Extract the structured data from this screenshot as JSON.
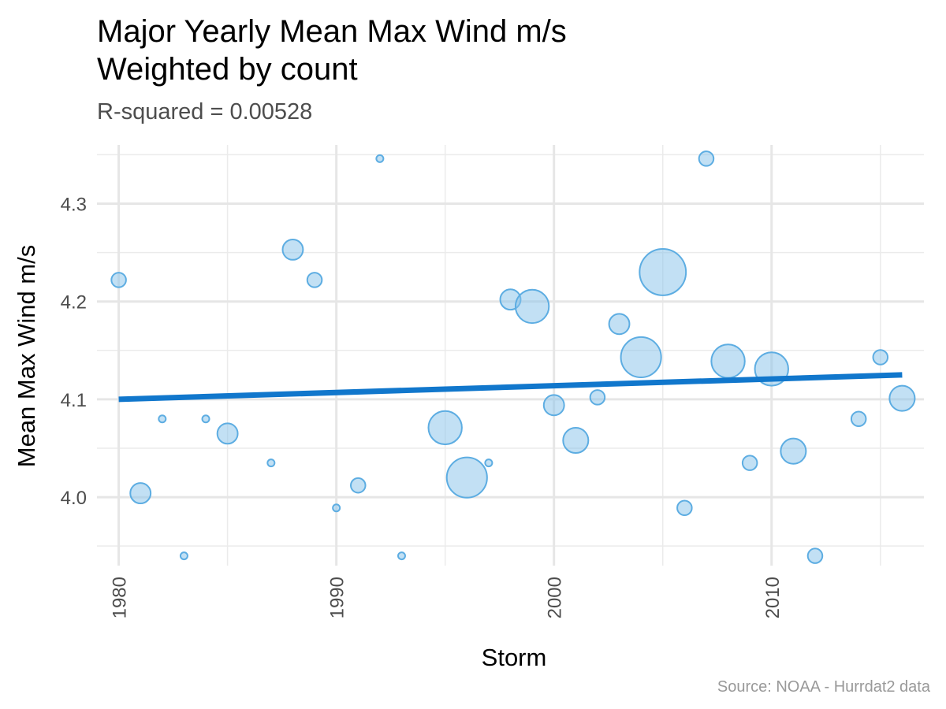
{
  "chart_data": {
    "type": "scatter",
    "title_line1": "Major Yearly Mean Max Wind m/s",
    "title_line2": "Weighted by count",
    "subtitle": "R-squared =  0.00528",
    "caption": "Source: NOAA - Hurrdat2 data",
    "xlabel": "Storm",
    "ylabel": "Mean Max Wind m/s",
    "xlim": [
      1979,
      2017
    ],
    "ylim": [
      3.93,
      4.36
    ],
    "x_ticks": [
      1980,
      1990,
      2000,
      2010
    ],
    "x_tick_labels": [
      "1980",
      "1990",
      "2000",
      "2010"
    ],
    "y_ticks": [
      4.0,
      4.1,
      4.2,
      4.3
    ],
    "y_tick_labels": [
      "4.0",
      "4.1",
      "4.2",
      "4.3"
    ],
    "grid": true,
    "point_color": "#85C1E9",
    "point_stroke": "#5DADE2",
    "line_color": "#1177CC",
    "points": [
      {
        "x": 1980,
        "y": 4.222,
        "weight": 2
      },
      {
        "x": 1981,
        "y": 4.004,
        "weight": 3
      },
      {
        "x": 1982,
        "y": 4.08,
        "weight": 1
      },
      {
        "x": 1983,
        "y": 3.94,
        "weight": 1
      },
      {
        "x": 1984,
        "y": 4.08,
        "weight": 1
      },
      {
        "x": 1985,
        "y": 4.065,
        "weight": 3
      },
      {
        "x": 1987,
        "y": 4.035,
        "weight": 1
      },
      {
        "x": 1988,
        "y": 4.253,
        "weight": 3
      },
      {
        "x": 1989,
        "y": 4.222,
        "weight": 2
      },
      {
        "x": 1990,
        "y": 3.989,
        "weight": 1
      },
      {
        "x": 1991,
        "y": 4.012,
        "weight": 2
      },
      {
        "x": 1992,
        "y": 4.346,
        "weight": 1
      },
      {
        "x": 1993,
        "y": 3.94,
        "weight": 1
      },
      {
        "x": 1995,
        "y": 4.071,
        "weight": 6
      },
      {
        "x": 1996,
        "y": 4.02,
        "weight": 8
      },
      {
        "x": 1997,
        "y": 4.035,
        "weight": 1
      },
      {
        "x": 1998,
        "y": 4.202,
        "weight": 3
      },
      {
        "x": 1999,
        "y": 4.195,
        "weight": 6
      },
      {
        "x": 2000,
        "y": 4.094,
        "weight": 3
      },
      {
        "x": 2001,
        "y": 4.058,
        "weight": 4
      },
      {
        "x": 2002,
        "y": 4.102,
        "weight": 2
      },
      {
        "x": 2003,
        "y": 4.177,
        "weight": 3
      },
      {
        "x": 2004,
        "y": 4.143,
        "weight": 8
      },
      {
        "x": 2005,
        "y": 4.23,
        "weight": 10
      },
      {
        "x": 2006,
        "y": 3.989,
        "weight": 2
      },
      {
        "x": 2007,
        "y": 4.346,
        "weight": 2
      },
      {
        "x": 2008,
        "y": 4.139,
        "weight": 6
      },
      {
        "x": 2009,
        "y": 4.035,
        "weight": 2
      },
      {
        "x": 2010,
        "y": 4.131,
        "weight": 6
      },
      {
        "x": 2011,
        "y": 4.047,
        "weight": 4
      },
      {
        "x": 2012,
        "y": 3.94,
        "weight": 2
      },
      {
        "x": 2014,
        "y": 4.08,
        "weight": 2
      },
      {
        "x": 2015,
        "y": 4.143,
        "weight": 2
      },
      {
        "x": 2016,
        "y": 4.101,
        "weight": 4
      }
    ],
    "trend_line": {
      "x": [
        1980,
        2016
      ],
      "y": [
        4.1,
        4.125
      ]
    }
  }
}
